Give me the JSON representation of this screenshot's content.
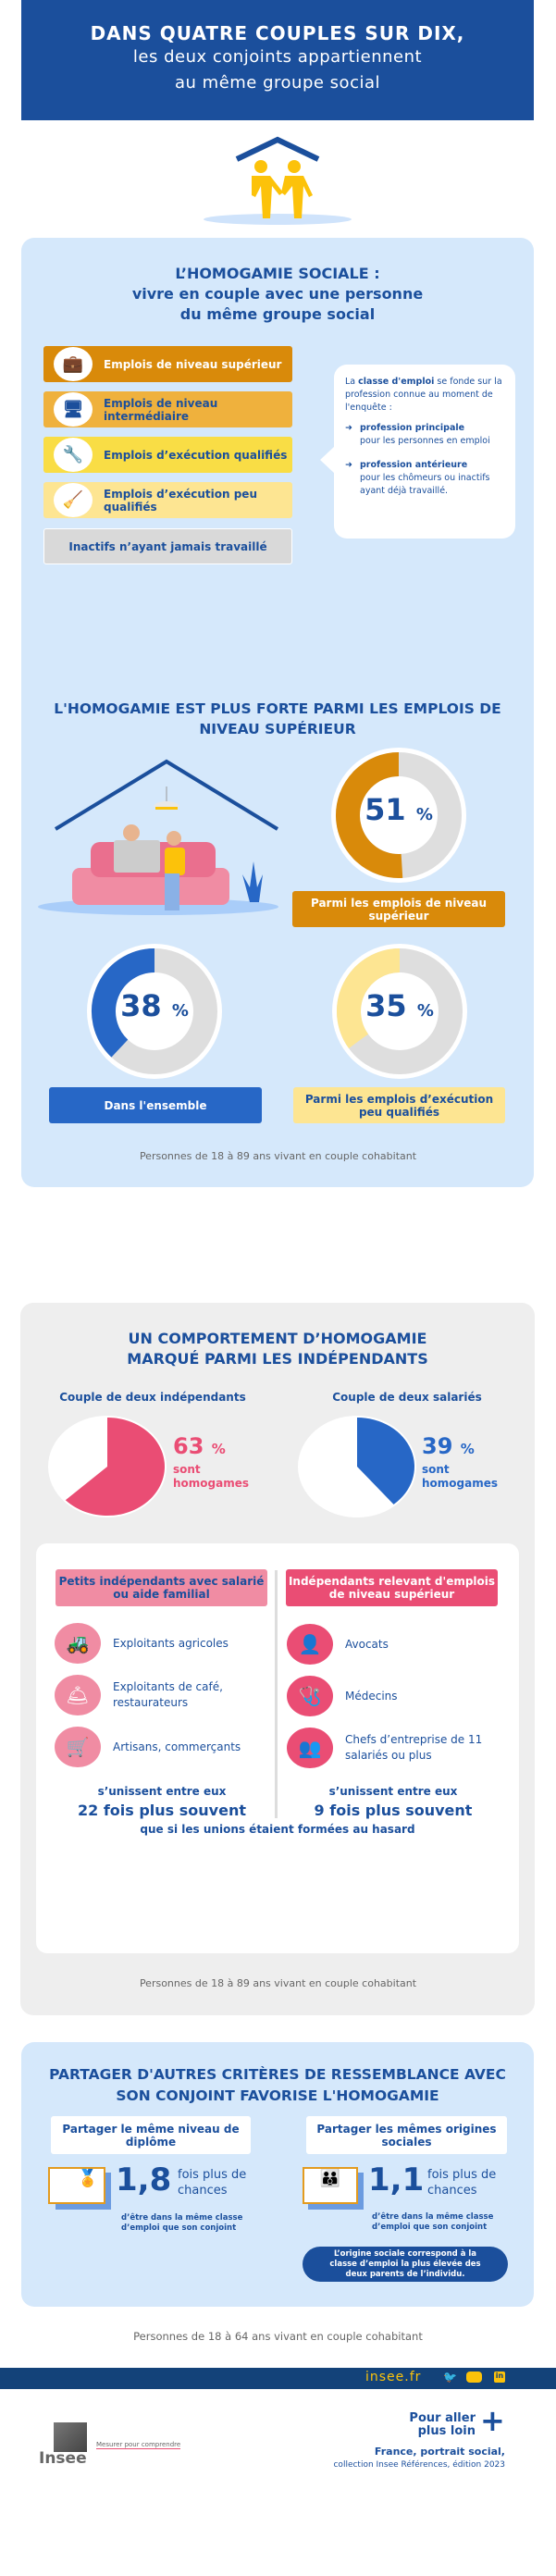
{
  "header": {
    "line1": "DANS QUATRE COUPLES SUR DIX,",
    "line2": "les deux conjoints appartiennent",
    "line3": "au même groupe social"
  },
  "section1": {
    "title1": "L’HOMOGAMIE SOCIALE :",
    "title2": "vivre en couple avec une personne",
    "title3": "du même groupe social",
    "categories": [
      {
        "label": "Emplois de niveau supérieur",
        "icon": "briefcase-icon",
        "color": "#d98a0a"
      },
      {
        "label": "Emplois de niveau intermédiaire",
        "icon": "monitor-icon",
        "color": "#efb13d"
      },
      {
        "label": "Emplois d’exécution qualifiés",
        "icon": "wrench-icon",
        "color": "#f9dd45"
      },
      {
        "label": "Emplois d’exécution peu qualifiés",
        "icon": "mop-bucket-icon",
        "color": "#fde592"
      },
      {
        "label": "Inactifs n’ayant jamais travaillé",
        "color": "#d9d9d9"
      }
    ],
    "callout": {
      "intro_a": "La ",
      "intro_b": "classe d'emploi",
      "intro_c": " se fonde sur la profession connue au moment de l'enquête :",
      "item1_bold": "profession principale",
      "item1_text": "pour les personnes en emploi",
      "item2_bold": "profession antérieure",
      "item2_text": "pour les chômeurs ou inactifs ayant déjà travaillé."
    }
  },
  "section2": {
    "title": "L'HOMOGAMIE EST PLUS FORTE PARMI LES EMPLOIS DE NIVEAU SUPÉRIEUR",
    "donuts": [
      {
        "value": 51,
        "label": "Parmi les emplois de niveau supérieur",
        "color": "#d98a0a"
      },
      {
        "value": 38,
        "label": "Dans l'ensemble",
        "color": "#2767c6"
      },
      {
        "value": 35,
        "label": "Parmi les emplois d’exécution peu qualifiés",
        "color": "#fde592"
      }
    ],
    "pct_sign": "%",
    "footnote": "Personnes de 18 à 89 ans vivant en couple cohabitant"
  },
  "section3": {
    "title": "UN COMPORTEMENT D’HOMOGAMIE MARQUÉ PARMI LES INDÉPENDANTS",
    "pies": [
      {
        "heading": "Couple de deux indépendants",
        "value": 63,
        "text": "sont homogames",
        "color": "#ea4d74"
      },
      {
        "heading": "Couple de deux salariés",
        "value": 39,
        "text": "sont homogames",
        "color": "#2767c6"
      }
    ],
    "left": {
      "header": "Petits indépendants avec salarié ou aide familial",
      "items": [
        {
          "label": "Exploitants agricoles",
          "icon": "tractor-icon"
        },
        {
          "label": "Exploitants de café, restaurateurs",
          "icon": "cloche-icon"
        },
        {
          "label": "Artisans, commerçants",
          "icon": "shopkeeper-icon"
        }
      ],
      "unite": "s’unissent entre eux",
      "times": "22 fois plus souvent"
    },
    "right": {
      "header": "Indépendants relevant d'emplois de niveau supérieur",
      "items": [
        {
          "label": "Avocats",
          "icon": "lawyer-icon"
        },
        {
          "label": "Médecins",
          "icon": "stethoscope-icon"
        },
        {
          "label": "Chefs d’entreprise de 11 salariés ou plus",
          "icon": "group-icon"
        }
      ],
      "unite": "s’unissent entre eux",
      "times": "9 fois plus souvent"
    },
    "conclusion": "que si les unions étaient formées au hasard",
    "footnote": "Personnes de 18 à 89 ans vivant en couple cohabitant"
  },
  "section4": {
    "title": "PARTAGER D'AUTRES CRITÈRES DE RESSEMBLANCE AVEC SON CONJOINT FAVORISE L'HOMOGAMIE",
    "cards": [
      {
        "heading": "Partager le même niveau de diplôme",
        "value": "1,8",
        "unit": "fois plus de chances",
        "desc": "d’être dans la même classe d’emploi que son conjoint",
        "icon": "diploma-icon"
      },
      {
        "heading": "Partager les mêmes origines sociales",
        "value": "1,1",
        "unit": "fois plus de chances",
        "desc": "d’être dans la même classe d’emploi que son conjoint",
        "icon": "family-icon"
      }
    ],
    "note": "L’origine sociale correspond à la classe d’emploi la plus élevée des deux parents de l’individu."
  },
  "footnote": "Personnes de 18 à 64 ans vivant en couple cohabitant",
  "footer": {
    "site": "insee.fr",
    "social": [
      "twitter-icon",
      "youtube-icon",
      "linkedin-icon"
    ],
    "more": "Pour aller plus loin",
    "pub_title": "France, portrait social,",
    "pub_sub": "collection Insee Références, édition 2023",
    "logo": "Insee",
    "tagline": "Mesurer pour comprendre"
  }
}
